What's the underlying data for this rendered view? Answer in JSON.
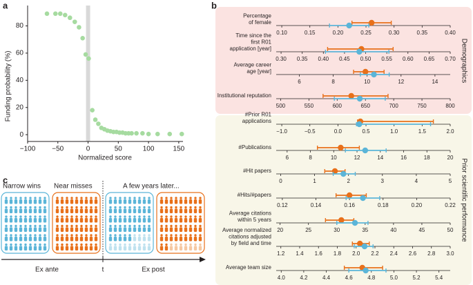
{
  "chart_data": [
    {
      "type": "scatter",
      "label": "a",
      "xlabel": "Normalized score",
      "ylabel": "Funding probability (%)",
      "color": "#a6dba0",
      "x": [
        -68,
        -54,
        -46,
        -38,
        -30,
        -22,
        -15,
        -9,
        -4,
        1,
        7,
        12,
        17,
        22,
        27,
        32,
        37,
        42,
        47,
        52,
        57,
        62,
        67,
        72,
        80,
        90,
        100,
        115,
        135,
        155
      ],
      "y": [
        89,
        89,
        89,
        88,
        86,
        83,
        79,
        71,
        59,
        56,
        18,
        11,
        8,
        5,
        4,
        3,
        2.5,
        2,
        2,
        1.5,
        1.5,
        1,
        1,
        1,
        1,
        1,
        0.5,
        0.5,
        0.5,
        0.5
      ],
      "xlim": [
        -100,
        157
      ],
      "ylim": [
        -5,
        95
      ],
      "xticks": [
        {
          "value": -100,
          "label": "−100"
        },
        {
          "value": -50,
          "label": "−50"
        },
        0,
        50,
        100,
        150
      ],
      "yticks": [
        0,
        20,
        40,
        60,
        80
      ]
    },
    {
      "type": "forest",
      "label": "b",
      "series": [
        {
          "color": "#e8701a"
        },
        {
          "color": "#5bb5d8"
        }
      ],
      "groups": [
        {
          "name": "Demographics",
          "color": "#fbe3e1",
          "rows": [
            {
              "label": [
                "Percentage",
                "of female"
              ],
              "xlim": [
                0.095,
                0.4
              ],
              "xticks": [
                {
                  "value": 0.1,
                  "label": "0.10"
                },
                0.15,
                {
                  "value": 0.2,
                  "label": "0.20"
                },
                0.25,
                {
                  "value": 0.3,
                  "label": "0.30"
                },
                0.35,
                {
                  "value": 0.4,
                  "label": "0.40"
                }
              ],
              "values": [
                0.26,
                0.22
              ],
              "ci": [
                [
                  0.225,
                  0.295
                ],
                [
                  0.185,
                  0.255
                ]
              ]
            },
            {
              "label": [
                "Time since the",
                "first R01",
                "application [year]"
              ],
              "xlim": [
                0.295,
                0.7
              ],
              "xticks": [
                {
                  "value": 0.3,
                  "label": "0.30"
                },
                0.35,
                {
                  "value": 0.4,
                  "label": "0.40"
                },
                0.45,
                {
                  "value": 0.5,
                  "label": "0.50"
                },
                0.55,
                {
                  "value": 0.6,
                  "label": "0.60"
                },
                0.65,
                {
                  "value": 0.7,
                  "label": "0.70"
                }
              ],
              "values": [
                0.49,
                0.485
              ],
              "ci": [
                [
                  0.41,
                  0.565
                ],
                [
                  0.405,
                  0.555
                ]
              ]
            },
            {
              "label": [
                "Average career",
                "age [year]"
              ],
              "xlim": [
                4.8,
                14.9
              ],
              "xticks": [
                6,
                8,
                10,
                12,
                14
              ],
              "values": [
                9.9,
                10.4
              ],
              "ci": [
                [
                  9.2,
                  11.0
                ],
                [
                  9.6,
                  11.3
                ]
              ]
            },
            {
              "label": [
                "Institutional reputation"
              ],
              "xlim": [
                497,
                800
              ],
              "xticks": [
                500,
                550,
                600,
                650,
                700,
                750,
                800
              ],
              "values": [
                625,
                640
              ],
              "ci": [
                [
                  575,
                  690
                ],
                [
                  595,
                  685
                ]
              ]
            }
          ]
        },
        {
          "name": "Prior scientific performance",
          "color": "#f8f6e8",
          "rows": [
            {
              "label": [
                "#Prior R01",
                "applications"
              ],
              "xlim": [
                -1.05,
                2.0
              ],
              "xticks": [
                {
                  "value": -1.0,
                  "label": "−1.0"
                },
                {
                  "value": -0.5,
                  "label": "−0.5"
                },
                {
                  "value": 0,
                  "label": "0.0"
                },
                0.5,
                {
                  "value": 1,
                  "label": "1.0"
                },
                1.5,
                {
                  "value": 2,
                  "label": "2.0"
                }
              ],
              "values": [
                0.4,
                0.38
              ],
              "ci": [
                [
                  0.35,
                  1.7
                ],
                [
                  0.33,
                  1.65
                ]
              ]
            },
            {
              "label": [
                "#Publications"
              ],
              "xlim": [
                5.3,
                20
              ],
              "xticks": [
                6,
                8,
                10,
                12,
                14,
                16,
                18,
                20
              ],
              "values": [
                10.6,
                12.7
              ],
              "ci": [
                [
                  8.6,
                  12.2
                ],
                [
                  11,
                  14.5
                ]
              ]
            },
            {
              "label": [
                "#Hit papers"
              ],
              "xlim": [
                -0.05,
                5
              ],
              "xticks": [
                0,
                1,
                2,
                3,
                4,
                5
              ],
              "values": [
                1.6,
                1.85
              ],
              "ci": [
                [
                  1.3,
                  1.9
                ],
                [
                  1.55,
                  2.2
                ]
              ]
            },
            {
              "label": [
                "#Hits/#papers"
              ],
              "xlim": [
                0.118,
                0.22
              ],
              "xticks": [
                0.12,
                0.14,
                0.16,
                0.18,
                {
                  "value": 0.2,
                  "label": "0.20"
                },
                0.22
              ],
              "values": [
                0.16,
                0.168
              ],
              "ci": [
                [
                  0.152,
                  0.17
                ],
                [
                  0.158,
                  0.178
                ]
              ]
            },
            {
              "label": [
                "Average citations",
                "within 5 years"
              ],
              "xlim": [
                19.8,
                50
              ],
              "xticks": [
                20,
                25,
                30,
                35,
                40,
                45,
                50
              ],
              "values": [
                30.8,
                33.2
              ],
              "ci": [
                [
                  28,
                  33
                ],
                [
                  30,
                  35.5
                ]
              ]
            },
            {
              "label": [
                "Average normalized",
                "citations adjusted",
                "by field and time"
              ],
              "xlim": [
                1.18,
                3.0
              ],
              "xticks": [
                1.2,
                1.4,
                1.6,
                1.8,
                {
                  "value": 2,
                  "label": "2.0"
                },
                2.2,
                2.4,
                2.6,
                2.8,
                {
                  "value": 3,
                  "label": "3.0"
                }
              ],
              "values": [
                2.04,
                2.09
              ],
              "ci": [
                [
                  1.96,
                  2.14
                ],
                [
                  1.98,
                  2.18
                ]
              ]
            },
            {
              "label": [
                "Average team size"
              ],
              "xlim": [
                3.98,
                5.5
              ],
              "xticks": [
                {
                  "value": 4,
                  "label": "4.0"
                },
                4.2,
                4.4,
                4.6,
                4.8,
                {
                  "value": 5,
                  "label": "5.0"
                },
                5.2,
                5.4
              ],
              "values": [
                4.72,
                4.75
              ],
              "ci": [
                [
                  4.56,
                  4.9
                ],
                [
                  4.6,
                  4.93
                ]
              ]
            }
          ]
        }
      ]
    }
  ],
  "diagram": {
    "label": "c",
    "groups": [
      "Narrow wins",
      "Near misses"
    ],
    "later": "A few years later...",
    "timeline": [
      "Ex ante",
      "t",
      "Ex post"
    ]
  }
}
